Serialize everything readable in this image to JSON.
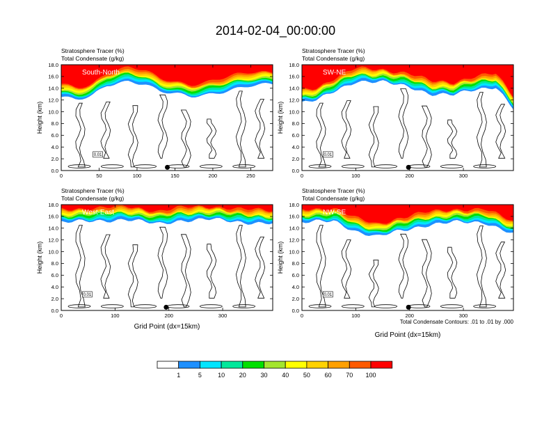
{
  "title": "2014-02-04_00:00:00",
  "footnote": "Total Condensate Contours: .01 to .01 by .000",
  "colorbar": {
    "colors": [
      "#ffffff",
      "#1e90ff",
      "#00e5ff",
      "#00e89b",
      "#00e000",
      "#a4e62e",
      "#ffff00",
      "#ffd200",
      "#ffa000",
      "#ff5a00",
      "#ff0000"
    ],
    "labels": [
      "1",
      "5",
      "10",
      "20",
      "30",
      "40",
      "50",
      "60",
      "70",
      "100"
    ]
  },
  "chart_data": [
    {
      "type": "heatmap",
      "panel_label": "South-North",
      "subtitle_line1": "Stratosphere Tracer   (%)",
      "subtitle_line2": "Total Condensate   (g/kg)",
      "ylabel": "Height (km)",
      "xlabel": "",
      "xlim": [
        0,
        279
      ],
      "ylim": [
        0,
        18
      ],
      "xticks": [
        0,
        50,
        100,
        150,
        200,
        250
      ],
      "xtick_labels": [
        "0",
        "50",
        "100",
        "150",
        "200",
        "250"
      ],
      "yticks": [
        0,
        2,
        4,
        6,
        8,
        10,
        12,
        14,
        16,
        18
      ],
      "ytick_labels": [
        "0.0",
        "2.0",
        "4.0",
        "6.0",
        "8.0",
        "10.0",
        "12.0",
        "14.0",
        "16.0",
        "18.0"
      ],
      "tropopause_base_km": [
        [
          0,
          12.5
        ],
        [
          20,
          12.0
        ],
        [
          40,
          12.5
        ],
        [
          60,
          14.5
        ],
        [
          90,
          15.3
        ],
        [
          110,
          14.8
        ],
        [
          130,
          13.5
        ],
        [
          150,
          13.0
        ],
        [
          170,
          12.5
        ],
        [
          190,
          12.8
        ],
        [
          210,
          13.4
        ],
        [
          230,
          14.0
        ],
        [
          250,
          14.5
        ],
        [
          279,
          14.6
        ]
      ],
      "contour_level": "0.01",
      "marker_x": 140
    },
    {
      "type": "heatmap",
      "panel_label": "SW-NE",
      "subtitle_line1": "Stratosphere Tracer   (%)",
      "subtitle_line2": "Total Condensate   (g/kg)",
      "ylabel": "Height (km)",
      "xlabel": "",
      "xlim": [
        0,
        393
      ],
      "ylim": [
        0,
        18
      ],
      "xticks": [
        0,
        100,
        200,
        300
      ],
      "xtick_labels": [
        "0",
        "100",
        "200",
        "300"
      ],
      "yticks": [
        0,
        2,
        4,
        6,
        8,
        10,
        12,
        14,
        16,
        18
      ],
      "ytick_labels": [
        "0.0",
        "2.0",
        "4.0",
        "6.0",
        "8.0",
        "10.0",
        "12.0",
        "14.0",
        "16.0",
        "18.0"
      ],
      "tropopause_base_km": [
        [
          0,
          11.5
        ],
        [
          30,
          12.0
        ],
        [
          60,
          13.5
        ],
        [
          100,
          15.2
        ],
        [
          150,
          15.0
        ],
        [
          200,
          14.3
        ],
        [
          240,
          13.0
        ],
        [
          280,
          12.8
        ],
        [
          320,
          13.8
        ],
        [
          360,
          14.3
        ],
        [
          393,
          10.5
        ]
      ],
      "contour_level": "0.01",
      "marker_x": 198
    },
    {
      "type": "heatmap",
      "panel_label": "West-East",
      "subtitle_line1": "Stratosphere Tracer   (%)",
      "subtitle_line2": "Total Condensate   (g/kg)",
      "ylabel": "Height (km)",
      "xlabel": "Grid Point (dx=15km)",
      "xlim": [
        0,
        393
      ],
      "ylim": [
        0,
        18
      ],
      "xticks": [
        0,
        100,
        200,
        300
      ],
      "xtick_labels": [
        "0",
        "100",
        "200",
        "300"
      ],
      "yticks": [
        0,
        2,
        4,
        6,
        8,
        10,
        12,
        14,
        16,
        18
      ],
      "ytick_labels": [
        "0.0",
        "2.0",
        "4.0",
        "6.0",
        "8.0",
        "10.0",
        "12.0",
        "14.0",
        "16.0",
        "18.0"
      ],
      "tropopause_base_km": [
        [
          0,
          15.0
        ],
        [
          60,
          15.2
        ],
        [
          120,
          15.5
        ],
        [
          180,
          14.7
        ],
        [
          220,
          15.3
        ],
        [
          280,
          15.5
        ],
        [
          340,
          15.0
        ],
        [
          393,
          14.8
        ]
      ],
      "contour_level": "0.01",
      "marker_x": 195
    },
    {
      "type": "heatmap",
      "panel_label": "NW-SE",
      "subtitle_line1": "Stratosphere Tracer   (%)",
      "subtitle_line2": "Total Condensate   (g/kg)",
      "ylabel": "Height (km)",
      "xlabel": "Grid Point (dx=15km)",
      "xlim": [
        0,
        393
      ],
      "ylim": [
        0,
        18
      ],
      "xticks": [
        0,
        100,
        200,
        300
      ],
      "xtick_labels": [
        "0",
        "100",
        "200",
        "300"
      ],
      "yticks": [
        0,
        2,
        4,
        6,
        8,
        10,
        12,
        14,
        16,
        18
      ],
      "ytick_labels": [
        "0.0",
        "2.0",
        "4.0",
        "6.0",
        "8.0",
        "10.0",
        "12.0",
        "14.0",
        "16.0",
        "18.0"
      ],
      "tropopause_base_km": [
        [
          0,
          15.0
        ],
        [
          60,
          15.2
        ],
        [
          100,
          13.5
        ],
        [
          140,
          12.5
        ],
        [
          180,
          13.5
        ],
        [
          230,
          14.5
        ],
        [
          280,
          15.0
        ],
        [
          340,
          15.0
        ],
        [
          393,
          13.0
        ]
      ],
      "contour_level": "0.01",
      "marker_x": 198
    }
  ]
}
